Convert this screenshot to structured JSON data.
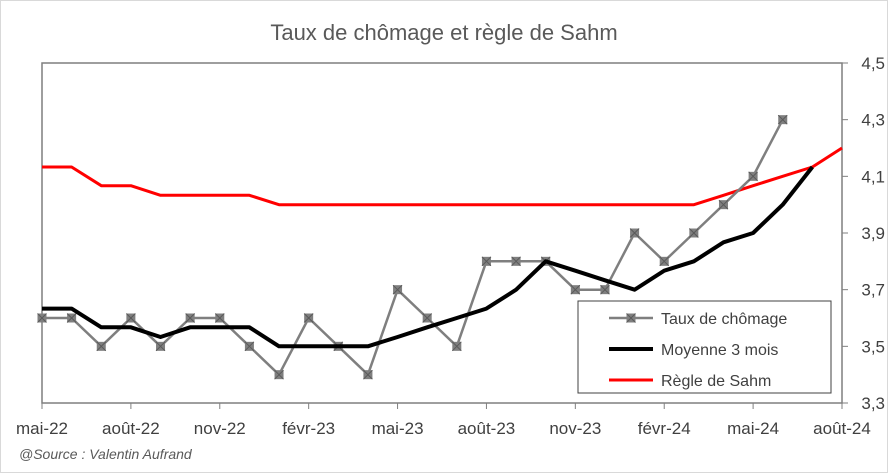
{
  "chart_data": {
    "type": "line",
    "title": "Taux de chômage et règle de Sahm",
    "x": [
      "2022-05",
      "2022-06",
      "2022-07",
      "2022-08",
      "2022-09",
      "2022-10",
      "2022-11",
      "2022-12",
      "2023-01",
      "2023-02",
      "2023-03",
      "2023-04",
      "2023-05",
      "2023-06",
      "2023-07",
      "2023-08",
      "2023-09",
      "2023-10",
      "2023-11",
      "2023-12",
      "2024-01",
      "2024-02",
      "2024-03",
      "2024-04",
      "2024-05",
      "2024-06",
      "2024-07",
      "2024-08"
    ],
    "x_tick_labels": [
      "mai-22",
      "août-22",
      "nov-22",
      "févr-23",
      "mai-23",
      "août-23",
      "nov-23",
      "févr-24",
      "mai-24",
      "août-24"
    ],
    "y_tick_labels": [
      "3,3",
      "3,5",
      "3,7",
      "3,9",
      "4,1",
      "4,3",
      "4,5"
    ],
    "ylim": [
      3.3,
      4.5
    ],
    "y_axis_side": "right",
    "grid": false,
    "legend_position": "bottom-right",
    "series": [
      {
        "name": "Taux de chômage",
        "color": "#7f7f7f",
        "marker": "x-square",
        "values": [
          3.6,
          3.6,
          3.5,
          3.6,
          3.5,
          3.6,
          3.6,
          3.5,
          3.4,
          3.6,
          3.5,
          3.4,
          3.7,
          3.6,
          3.5,
          3.8,
          3.8,
          3.8,
          3.7,
          3.7,
          3.9,
          3.8,
          3.9,
          4.0,
          4.1,
          4.3,
          null,
          null
        ]
      },
      {
        "name": "Moyenne 3 mois",
        "color": "#000000",
        "marker": "none",
        "values": [
          3.633,
          3.633,
          3.567,
          3.567,
          3.533,
          3.567,
          3.567,
          3.567,
          3.5,
          3.5,
          3.5,
          3.5,
          3.533,
          3.567,
          3.6,
          3.633,
          3.7,
          3.8,
          3.767,
          3.733,
          3.7,
          3.767,
          3.8,
          3.867,
          3.9,
          4.0,
          4.133,
          null
        ]
      },
      {
        "name": "Règle de Sahm",
        "color": "#ff0000",
        "marker": "none",
        "values": [
          4.133,
          4.133,
          4.067,
          4.067,
          4.033,
          4.033,
          4.033,
          4.033,
          4.0,
          4.0,
          4.0,
          4.0,
          4.0,
          4.0,
          4.0,
          4.0,
          4.0,
          4.0,
          4.0,
          4.0,
          4.0,
          4.0,
          4.0,
          4.033,
          4.067,
          4.1,
          4.133,
          4.2
        ]
      }
    ]
  },
  "source": "@Source : Valentin Aufrand"
}
